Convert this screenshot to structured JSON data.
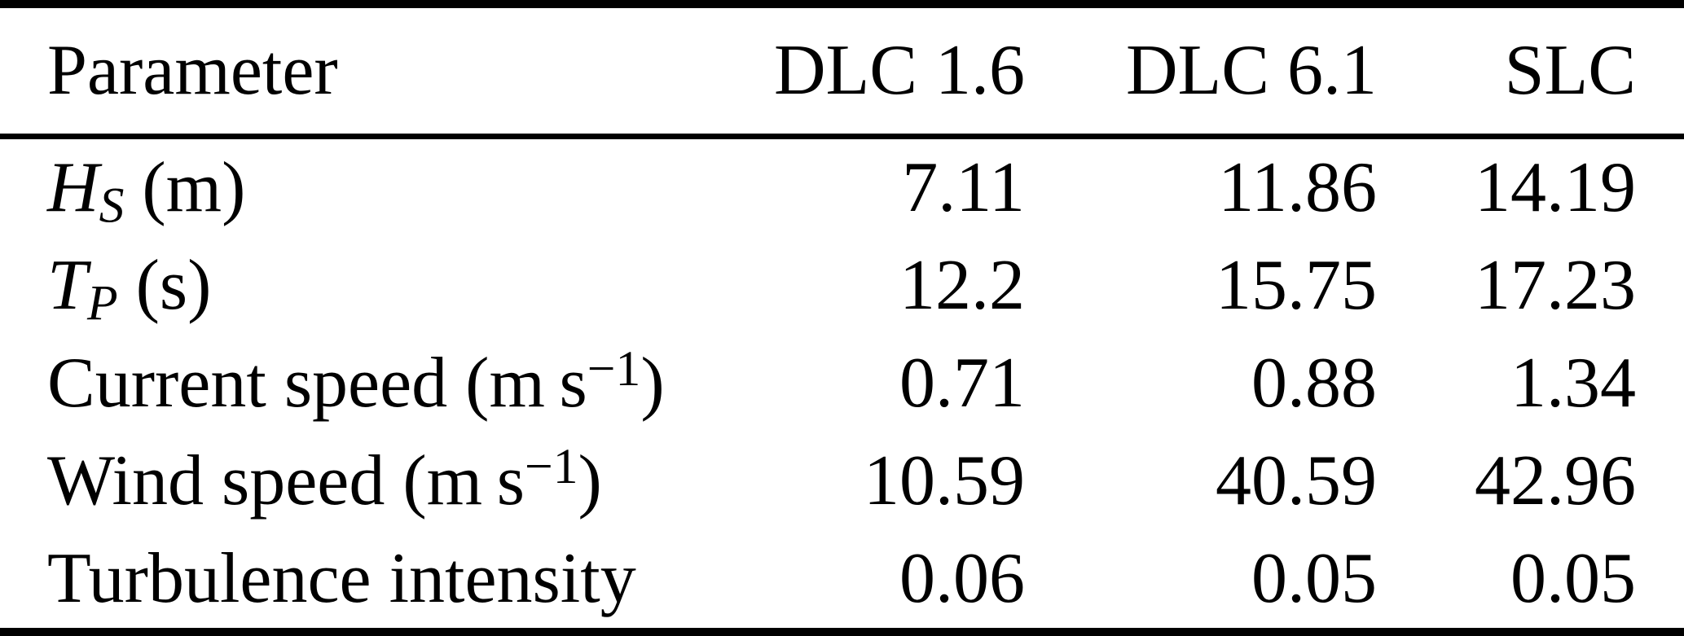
{
  "page": {
    "background_color": "#ffffff",
    "text_color": "#000000",
    "rule_color": "#000000"
  },
  "table": {
    "header": [
      "Parameter",
      "DLC 1.6",
      "DLC 6.1",
      "SLC"
    ],
    "rows": [
      {
        "label": {
          "var": "H",
          "sub": "S",
          "text": " (m)"
        },
        "values": [
          "7.11",
          "11.86",
          "14.19"
        ]
      },
      {
        "label": {
          "var": "T",
          "sub": "P",
          "text": " (s)"
        },
        "values": [
          "12.2",
          "15.75",
          "17.23"
        ]
      },
      {
        "label": {
          "text": "Current speed (m s",
          "sup": "−1",
          "text2": ")"
        },
        "values": [
          "0.71",
          "0.88",
          "1.34"
        ]
      },
      {
        "label": {
          "text": "Wind speed (m s",
          "sup": "−1",
          "text2": ")"
        },
        "values": [
          "10.59",
          "40.59",
          "42.96"
        ]
      },
      {
        "label": {
          "text": "Turbulence intensity"
        },
        "values": [
          "0.06",
          "0.05",
          "0.05"
        ]
      }
    ]
  }
}
